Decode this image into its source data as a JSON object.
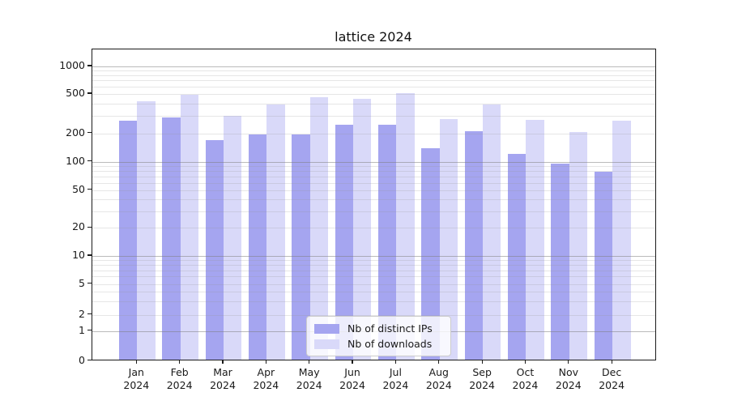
{
  "title": "lattice 2024",
  "chart_data": {
    "type": "bar",
    "title": "lattice 2024",
    "categories": [
      "Jan",
      "Feb",
      "Mar",
      "Apr",
      "May",
      "Jun",
      "Jul",
      "Aug",
      "Sep",
      "Oct",
      "Nov",
      "Dec"
    ],
    "year_label": "2024",
    "series": [
      {
        "name": "Nb of distinct IPs",
        "color": "#a5a5f0",
        "values": [
          270,
          290,
          170,
          195,
          195,
          245,
          245,
          140,
          210,
          122,
          96,
          79
        ]
      },
      {
        "name": "Nb of downloads",
        "color": "#d9d9f9",
        "values": [
          420,
          490,
          300,
          390,
          460,
          450,
          510,
          280,
          390,
          275,
          205,
          270
        ]
      }
    ],
    "y_axis": {
      "tick_labels": [
        "1000",
        "500",
        "200",
        "100",
        "50",
        "20",
        "10",
        "5",
        "2",
        "1",
        "0"
      ],
      "tick_values": [
        1000,
        500,
        200,
        100,
        50,
        20,
        10,
        5,
        2,
        1,
        0
      ],
      "scale": "symlog",
      "major_gridline_values": [
        1,
        10,
        100,
        1000
      ],
      "ylim": [
        0,
        1500
      ]
    },
    "grid": "on",
    "legend_position": "lower-center-inside"
  }
}
